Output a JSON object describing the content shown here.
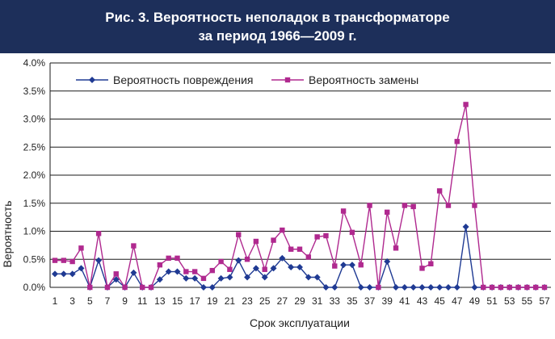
{
  "header": {
    "line1": "Рис. 3. Вероятность неполадок в трансформаторе",
    "line2": "за период 1966—2009 г."
  },
  "chart_data": {
    "type": "line",
    "ylabel": "Вероятность",
    "xlabel": "Срок эксплуатации",
    "ylim": [
      0,
      4.0
    ],
    "y_ticks": [
      "0.0%",
      "0.5%",
      "1.0%",
      "1.5%",
      "2.0%",
      "2.5%",
      "3.0%",
      "3.5%",
      "4.0%"
    ],
    "x_tick_labels": [
      "1",
      "3",
      "5",
      "7",
      "9",
      "11",
      "13",
      "15",
      "17",
      "19",
      "21",
      "23",
      "25",
      "27",
      "29",
      "31",
      "33",
      "35",
      "37",
      "39",
      "41",
      "43",
      "45",
      "47",
      "49",
      "51",
      "53",
      "55",
      "57"
    ],
    "legend_position": "top-left",
    "grid": "horizontal",
    "x": [
      1,
      2,
      3,
      4,
      5,
      6,
      7,
      8,
      9,
      10,
      11,
      12,
      13,
      14,
      15,
      16,
      17,
      18,
      19,
      20,
      21,
      22,
      23,
      24,
      25,
      26,
      27,
      28,
      29,
      30,
      31,
      32,
      33,
      34,
      35,
      36,
      37,
      38,
      39,
      40,
      41,
      42,
      43,
      44,
      45,
      46,
      47,
      48,
      49,
      50,
      51,
      52,
      53,
      54,
      55,
      56,
      57
    ],
    "series": [
      {
        "name": "Вероятность повреждения",
        "color": "#1f3a93",
        "marker": "diamond",
        "values": [
          0.24,
          0.24,
          0.24,
          0.34,
          0.0,
          0.48,
          0.0,
          0.14,
          0.0,
          0.26,
          0.0,
          0.0,
          0.14,
          0.28,
          0.28,
          0.16,
          0.16,
          0.0,
          0.0,
          0.16,
          0.18,
          0.48,
          0.18,
          0.34,
          0.18,
          0.34,
          0.52,
          0.36,
          0.36,
          0.18,
          0.18,
          0.0,
          0.0,
          0.4,
          0.4,
          0.0,
          0.0,
          0.0,
          0.46,
          0.0,
          0.0,
          0.0,
          0.0,
          0.0,
          0.0,
          0.0,
          0.0,
          1.08,
          0.0,
          0.0,
          0.0,
          0.0,
          0.0,
          0.0,
          0.0,
          0.0,
          0.0
        ]
      },
      {
        "name": "Вероятность замены",
        "color": "#b0298f",
        "marker": "square",
        "values": [
          0.48,
          0.48,
          0.46,
          0.7,
          0.0,
          0.96,
          0.0,
          0.24,
          0.0,
          0.74,
          0.0,
          0.0,
          0.4,
          0.52,
          0.52,
          0.28,
          0.28,
          0.16,
          0.3,
          0.46,
          0.32,
          0.94,
          0.5,
          0.82,
          0.32,
          0.84,
          1.02,
          0.68,
          0.68,
          0.54,
          0.9,
          0.92,
          0.38,
          1.36,
          0.98,
          0.4,
          1.46,
          0.0,
          1.34,
          0.7,
          1.46,
          1.44,
          0.34,
          0.42,
          1.72,
          1.46,
          2.6,
          3.26,
          1.46,
          0.0,
          0.0,
          0.0,
          0.0,
          0.0,
          0.0,
          0.0,
          0.0
        ]
      }
    ]
  }
}
